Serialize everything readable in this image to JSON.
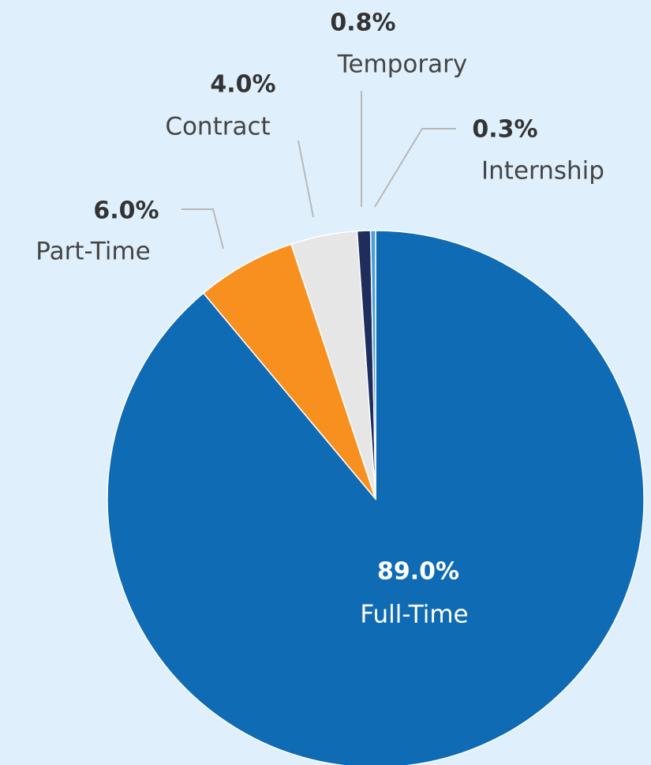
{
  "chart_data": {
    "type": "pie",
    "categories": [
      "Full-Time",
      "Part-Time",
      "Contract",
      "Temporary",
      "Internship"
    ],
    "values": [
      89.0,
      6.0,
      4.0,
      0.8,
      0.3
    ],
    "value_labels": [
      "89.0%",
      "6.0%",
      "4.0%",
      "0.8%",
      "0.3%"
    ],
    "colors": [
      "#106bb5",
      "#f7901e",
      "#e6e6e6",
      "#1f2d5c",
      "#4a9fdf"
    ]
  }
}
